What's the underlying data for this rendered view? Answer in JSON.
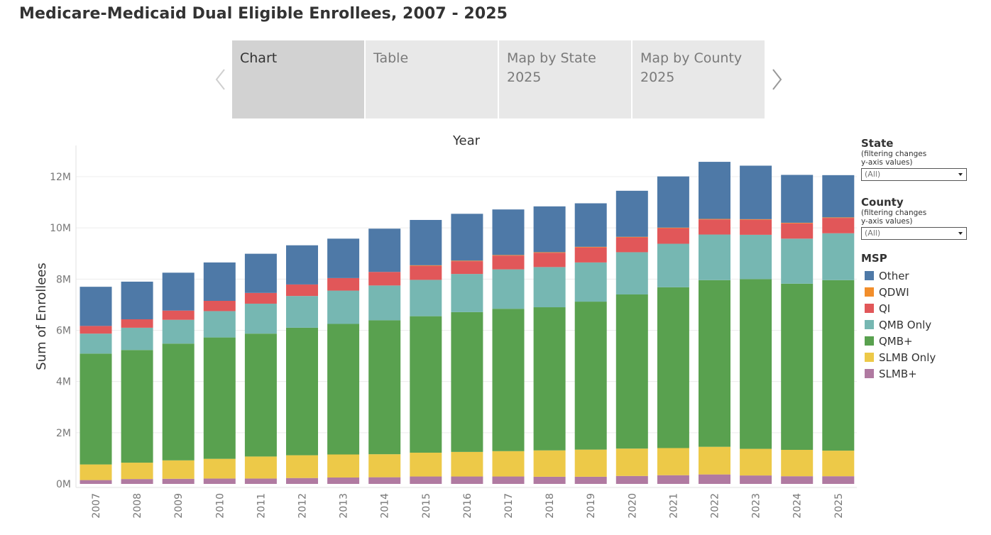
{
  "page": {
    "title": "Medicare-Medicaid Dual Eligible Enrollees, 2007 - 2025"
  },
  "tabs": [
    {
      "lines": [
        "Chart"
      ],
      "active": true
    },
    {
      "lines": [
        "Table"
      ],
      "active": false
    },
    {
      "lines": [
        "Map by State",
        "2025"
      ],
      "active": false
    },
    {
      "lines": [
        "Map by County",
        "2025"
      ],
      "active": false
    }
  ],
  "icons": {
    "prev": "chevron-left-icon",
    "next": "chevron-right-icon",
    "dropdown": "caret-down-icon"
  },
  "filters": {
    "state": {
      "title": "State",
      "note_lines": [
        "(filtering changes",
        "y-axis values)"
      ],
      "value": "(All)"
    },
    "county": {
      "title": "County",
      "note_lines": [
        "(filtering changes",
        "y-axis values)"
      ],
      "value": "(All)"
    }
  },
  "legend": {
    "title": "MSP",
    "items": [
      {
        "name": "Other",
        "color": "#4e79a7"
      },
      {
        "name": "QDWI",
        "color": "#f28e2b"
      },
      {
        "name": "QI",
        "color": "#e15759"
      },
      {
        "name": "QMB Only",
        "color": "#76b7b2"
      },
      {
        "name": "QMB+",
        "color": "#59a14f"
      },
      {
        "name": "SLMB Only",
        "color": "#edc948"
      },
      {
        "name": "SLMB+",
        "color": "#b07aa1"
      }
    ]
  },
  "chart_data": {
    "type": "bar",
    "stacked": true,
    "title": "Year",
    "xlabel": "",
    "ylabel": "Sum of Enrollees",
    "ylim": [
      0,
      13000000
    ],
    "yticks": [
      0,
      2000000,
      4000000,
      6000000,
      8000000,
      10000000,
      12000000
    ],
    "ytick_labels": [
      "0M",
      "2M",
      "4M",
      "6M",
      "8M",
      "10M",
      "12M"
    ],
    "grid": true,
    "legend_position": "right",
    "categories": [
      "2007",
      "2008",
      "2009",
      "2010",
      "2011",
      "2012",
      "2013",
      "2014",
      "2015",
      "2016",
      "2017",
      "2018",
      "2019",
      "2020",
      "2021",
      "2022",
      "2023",
      "2024",
      "2025"
    ],
    "series": [
      {
        "name": "SLMB+",
        "color": "#b07aa1",
        "values": [
          150000,
          190000,
          200000,
          210000,
          210000,
          230000,
          250000,
          260000,
          290000,
          290000,
          290000,
          280000,
          280000,
          310000,
          340000,
          370000,
          330000,
          300000,
          300000
        ]
      },
      {
        "name": "SLMB Only",
        "color": "#edc948",
        "values": [
          610000,
          640000,
          720000,
          770000,
          860000,
          890000,
          900000,
          900000,
          930000,
          960000,
          990000,
          1030000,
          1060000,
          1070000,
          1060000,
          1080000,
          1040000,
          1030000,
          1000000
        ]
      },
      {
        "name": "QMB+",
        "color": "#59a14f",
        "values": [
          4330000,
          4400000,
          4560000,
          4740000,
          4800000,
          4980000,
          5100000,
          5230000,
          5330000,
          5460000,
          5560000,
          5590000,
          5780000,
          6020000,
          6280000,
          6510000,
          6630000,
          6490000,
          6660000
        ]
      },
      {
        "name": "QMB Only",
        "color": "#76b7b2",
        "values": [
          780000,
          870000,
          930000,
          1030000,
          1170000,
          1240000,
          1300000,
          1360000,
          1420000,
          1490000,
          1540000,
          1570000,
          1530000,
          1650000,
          1700000,
          1780000,
          1730000,
          1760000,
          1830000
        ]
      },
      {
        "name": "QI",
        "color": "#e15759",
        "values": [
          300000,
          330000,
          360000,
          400000,
          420000,
          450000,
          490000,
          530000,
          550000,
          500000,
          540000,
          560000,
          590000,
          580000,
          610000,
          590000,
          590000,
          600000,
          600000
        ]
      },
      {
        "name": "QDWI",
        "color": "#f28e2b",
        "values": [
          0,
          0,
          0,
          0,
          0,
          0,
          0,
          0,
          20000,
          20000,
          20000,
          20000,
          20000,
          20000,
          20000,
          20000,
          20000,
          20000,
          20000
        ]
      },
      {
        "name": "Other",
        "color": "#4e79a7",
        "values": [
          1530000,
          1470000,
          1480000,
          1500000,
          1530000,
          1530000,
          1540000,
          1690000,
          1770000,
          1830000,
          1780000,
          1790000,
          1700000,
          1800000,
          2000000,
          2230000,
          2090000,
          1870000,
          1650000
        ]
      }
    ]
  }
}
